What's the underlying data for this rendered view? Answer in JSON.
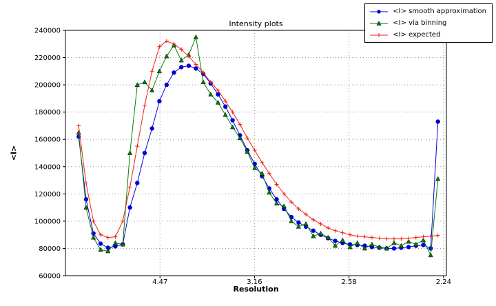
{
  "title": "Intensity plots",
  "legend_entries": [
    "<I> smooth approximation",
    "<I> via binning",
    "<I> expected"
  ],
  "colors": {
    "grid": "#999999",
    "axis": "#000000",
    "background": "#ffffff"
  },
  "chart_data": {
    "type": "line",
    "title": "Intensity plots",
    "xlabel": "Resolution",
    "ylabel": "<I>",
    "xlim": [
      0,
      0.2015
    ],
    "ylim": [
      60000,
      240000
    ],
    "grid": true,
    "legend_position": "upper-right-outside",
    "x_ticks": [
      {
        "value": 0.05,
        "label": "4.47"
      },
      {
        "value": 0.1,
        "label": "3.16"
      },
      {
        "value": 0.15,
        "label": "2.58"
      },
      {
        "value": 0.2,
        "label": "2.24"
      }
    ],
    "y_ticks": [
      {
        "value": 60000,
        "label": "60000"
      },
      {
        "value": 80000,
        "label": "80000"
      },
      {
        "value": 100000,
        "label": "100000"
      },
      {
        "value": 120000,
        "label": "120000"
      },
      {
        "value": 140000,
        "label": "140000"
      },
      {
        "value": 160000,
        "label": "160000"
      },
      {
        "value": 180000,
        "label": "180000"
      },
      {
        "value": 200000,
        "label": "200000"
      },
      {
        "value": 220000,
        "label": "220000"
      },
      {
        "value": 240000,
        "label": "240000"
      }
    ],
    "x": [
      0.007,
      0.0109,
      0.0148,
      0.0186,
      0.0225,
      0.0264,
      0.0303,
      0.0341,
      0.038,
      0.0419,
      0.0458,
      0.0497,
      0.0535,
      0.0574,
      0.0613,
      0.0652,
      0.069,
      0.0729,
      0.0768,
      0.0807,
      0.0846,
      0.0884,
      0.0923,
      0.0962,
      0.1001,
      0.104,
      0.1078,
      0.1117,
      0.1156,
      0.1195,
      0.1233,
      0.1272,
      0.1311,
      0.135,
      0.1389,
      0.1427,
      0.1466,
      0.1505,
      0.1544,
      0.1583,
      0.1621,
      0.166,
      0.1699,
      0.1738,
      0.1776,
      0.1815,
      0.1854,
      0.1893,
      0.1932,
      0.197
    ],
    "series": [
      {
        "name": "<I> smooth approximation",
        "color": "#0000dd",
        "marker": "circle",
        "values": [
          162000,
          116000,
          91000,
          83500,
          80500,
          81500,
          83000,
          110000,
          128000,
          150000,
          168000,
          188000,
          200000,
          209000,
          213000,
          214000,
          212000,
          208000,
          201000,
          193000,
          184000,
          174000,
          163000,
          152000,
          142000,
          133000,
          124000,
          116000,
          109000,
          103000,
          99000,
          96000,
          93000,
          90000,
          87500,
          85500,
          84000,
          83000,
          82500,
          82000,
          81000,
          80500,
          80000,
          80000,
          80500,
          81000,
          82000,
          82500,
          80000,
          173000
        ]
      },
      {
        "name": "<I> via binning",
        "color": "#067d06",
        "marker": "triangle-up",
        "values": [
          165000,
          110000,
          88000,
          79000,
          78000,
          84000,
          83000,
          150000,
          200000,
          202000,
          196000,
          210000,
          221000,
          229000,
          218000,
          222000,
          235000,
          202000,
          193000,
          187000,
          178000,
          169000,
          161000,
          151000,
          139000,
          135000,
          121000,
          113000,
          111000,
          100000,
          96000,
          98000,
          89000,
          91000,
          88000,
          82000,
          86000,
          81000,
          84000,
          80000,
          83000,
          81000,
          80000,
          84000,
          82000,
          85000,
          83000,
          86000,
          75000,
          131000
        ]
      },
      {
        "name": "<I> expected",
        "color": "#ee2211",
        "marker": "plus",
        "values": [
          170000,
          128000,
          100000,
          90000,
          88000,
          88500,
          100000,
          125000,
          155000,
          185000,
          210000,
          228000,
          232000,
          230000,
          226000,
          221000,
          215000,
          209000,
          202000,
          196000,
          188000,
          180000,
          171000,
          161000,
          152000,
          143000,
          135000,
          127000,
          120000,
          114000,
          109000,
          105000,
          101000,
          98000,
          95000,
          93000,
          91500,
          90000,
          89000,
          88500,
          88000,
          87500,
          87000,
          87000,
          87000,
          87500,
          88000,
          88500,
          89000,
          89500
        ]
      }
    ]
  }
}
